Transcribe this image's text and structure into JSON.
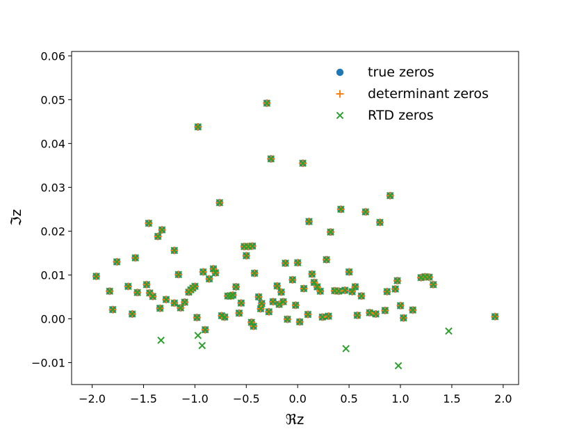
{
  "chart_data": {
    "type": "scatter",
    "xlabel": "ℜz",
    "ylabel": "ℑz",
    "xlim": [
      -2.2,
      2.15
    ],
    "ylim": [
      -0.015,
      0.061
    ],
    "xticks": [
      -2.0,
      -1.5,
      -1.0,
      -0.5,
      0.0,
      0.5,
      1.0,
      1.5,
      2.0
    ],
    "xtick_labels": [
      "−2.0",
      "−1.5",
      "−1.0",
      "−0.5",
      "0.0",
      "0.5",
      "1.0",
      "1.5",
      "2.0"
    ],
    "yticks": [
      -0.01,
      0.0,
      0.01,
      0.02,
      0.03,
      0.04,
      0.05,
      0.06
    ],
    "ytick_labels": [
      "−0.01",
      "0.00",
      "0.01",
      "0.02",
      "0.03",
      "0.04",
      "0.05",
      "0.06"
    ],
    "grid": false,
    "legend_position": "top-right",
    "series": [
      {
        "name": "true zeros",
        "marker": "circle",
        "color": "#1f77b4"
      },
      {
        "name": "determinant zeros",
        "marker": "plus",
        "color": "#ff7f0e"
      },
      {
        "name": "RTD zeros",
        "marker": "x",
        "color": "#2ca02c"
      }
    ],
    "shared_points": [
      [
        -1.96,
        0.0097
      ],
      [
        -1.83,
        0.0063
      ],
      [
        -1.8,
        0.0021
      ],
      [
        -1.76,
        0.013
      ],
      [
        -1.65,
        0.0074
      ],
      [
        -1.61,
        0.0011
      ],
      [
        -1.58,
        0.0139
      ],
      [
        -1.56,
        0.006
      ],
      [
        -1.47,
        0.0078
      ],
      [
        -1.45,
        0.0218
      ],
      [
        -1.44,
        0.0059
      ],
      [
        -1.41,
        0.0051
      ],
      [
        -1.36,
        0.0188
      ],
      [
        -1.34,
        0.0024
      ],
      [
        -1.32,
        0.0203
      ],
      [
        -1.28,
        0.0044
      ],
      [
        -1.2,
        0.0156
      ],
      [
        -1.2,
        0.0036
      ],
      [
        -1.16,
        0.0101
      ],
      [
        -1.14,
        0.0025
      ],
      [
        -1.1,
        0.0038
      ],
      [
        -1.06,
        0.0061
      ],
      [
        -1.04,
        0.0066
      ],
      [
        -1.02,
        0.007
      ],
      [
        -1.0,
        0.0074
      ],
      [
        -0.98,
        0.0003
      ],
      [
        -0.97,
        0.0438
      ],
      [
        -0.92,
        0.0107
      ],
      [
        -0.9,
        -0.0025
      ],
      [
        -0.86,
        0.0091
      ],
      [
        -0.82,
        0.0114
      ],
      [
        -0.8,
        0.0105
      ],
      [
        -0.76,
        0.0265
      ],
      [
        -0.74,
        0.0007
      ],
      [
        -0.71,
        0.0004
      ],
      [
        -0.68,
        0.0052
      ],
      [
        -0.65,
        0.0052
      ],
      [
        -0.63,
        0.0054
      ],
      [
        -0.6,
        0.0073
      ],
      [
        -0.57,
        0.0013
      ],
      [
        -0.55,
        0.0036
      ],
      [
        -0.52,
        0.0165
      ],
      [
        -0.5,
        0.0144
      ],
      [
        -0.48,
        0.0165
      ],
      [
        -0.45,
        -0.0008
      ],
      [
        -0.44,
        0.0166
      ],
      [
        -0.43,
        -0.0017
      ],
      [
        -0.42,
        0.0104
      ],
      [
        -0.38,
        0.005
      ],
      [
        -0.36,
        0.0023
      ],
      [
        -0.35,
        0.0035
      ],
      [
        -0.3,
        0.0492
      ],
      [
        -0.28,
        0.0016
      ],
      [
        -0.26,
        0.0365
      ],
      [
        -0.24,
        0.0039
      ],
      [
        -0.2,
        0.0075
      ],
      [
        -0.18,
        0.0033
      ],
      [
        -0.16,
        0.0061
      ],
      [
        -0.14,
        0.0039
      ],
      [
        -0.12,
        0.0127
      ],
      [
        -0.1,
        -0.0001
      ],
      [
        -0.05,
        0.0089
      ],
      [
        -0.02,
        0.0031
      ],
      [
        0.0,
        0.0128
      ],
      [
        0.02,
        -0.0007
      ],
      [
        0.05,
        0.0355
      ],
      [
        0.06,
        0.0069
      ],
      [
        0.1,
        0.001
      ],
      [
        0.11,
        0.0222
      ],
      [
        0.14,
        0.0102
      ],
      [
        0.16,
        0.0083
      ],
      [
        0.19,
        0.0073
      ],
      [
        0.22,
        0.0063
      ],
      [
        0.24,
        0.0004
      ],
      [
        0.28,
        0.0135
      ],
      [
        0.3,
        0.0006
      ],
      [
        0.32,
        0.0198
      ],
      [
        0.36,
        0.0064
      ],
      [
        0.4,
        0.0063
      ],
      [
        0.42,
        0.025
      ],
      [
        0.46,
        0.0065
      ],
      [
        0.5,
        0.0107
      ],
      [
        0.53,
        0.0062
      ],
      [
        0.56,
        0.0073
      ],
      [
        0.58,
        0.0008
      ],
      [
        0.62,
        0.0052
      ],
      [
        0.66,
        0.0244
      ],
      [
        0.7,
        0.0014
      ],
      [
        0.76,
        0.0011
      ],
      [
        0.8,
        0.022
      ],
      [
        0.85,
        0.0019
      ],
      [
        0.87,
        0.0062
      ],
      [
        0.9,
        0.0281
      ],
      [
        0.95,
        0.0068
      ],
      [
        0.97,
        0.0087
      ],
      [
        1.0,
        0.003
      ],
      [
        1.03,
        0.0002
      ],
      [
        1.12,
        0.002
      ],
      [
        1.2,
        0.0094
      ],
      [
        1.24,
        0.0096
      ],
      [
        1.28,
        0.0095
      ],
      [
        1.32,
        0.0078
      ],
      [
        1.92,
        0.0005
      ]
    ],
    "rtd_extra_points": [
      [
        -1.33,
        -0.0049
      ],
      [
        -0.97,
        -0.0038
      ],
      [
        -0.93,
        -0.0061
      ],
      [
        0.47,
        -0.0068
      ],
      [
        0.98,
        -0.0107
      ],
      [
        1.47,
        -0.0028
      ]
    ]
  }
}
